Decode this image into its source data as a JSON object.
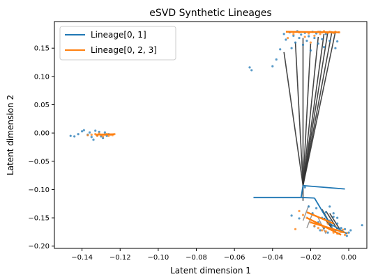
{
  "chart_data": {
    "type": "scatter",
    "title": "eSVD Synthetic Lineages",
    "xlabel": "Latent dimension 1",
    "ylabel": "Latent dimension 2",
    "xlim": [
      -0.1545,
      0.0095
    ],
    "ylim": [
      -0.204,
      0.197
    ],
    "xticks": [
      {
        "value": -0.14,
        "label": "−0.14"
      },
      {
        "value": -0.12,
        "label": "−0.12"
      },
      {
        "value": -0.1,
        "label": "−0.10"
      },
      {
        "value": -0.08,
        "label": "−0.08"
      },
      {
        "value": -0.06,
        "label": "−0.06"
      },
      {
        "value": -0.04,
        "label": "−0.04"
      },
      {
        "value": -0.02,
        "label": "−0.02"
      },
      {
        "value": 0.0,
        "label": "0.00"
      }
    ],
    "yticks": [
      {
        "value": 0.15,
        "label": "0.15"
      },
      {
        "value": 0.1,
        "label": "0.10"
      },
      {
        "value": 0.05,
        "label": "0.05"
      },
      {
        "value": 0.0,
        "label": "0.00"
      },
      {
        "value": -0.05,
        "label": "−0.05"
      },
      {
        "value": -0.1,
        "label": "−0.10"
      },
      {
        "value": -0.15,
        "label": "−0.15"
      },
      {
        "value": -0.2,
        "label": "−0.20"
      }
    ],
    "legend": {
      "position": "top-left",
      "entries": [
        {
          "name": "Lineage[0, 1]",
          "color": "#1f77b4"
        },
        {
          "name": "Lineage[0, 2, 3]",
          "color": "#ff7f0e"
        }
      ]
    },
    "grid": false,
    "colors": {
      "blue": "#1f77b4",
      "orange": "#ff7f0e",
      "line": "#333333",
      "gray": "#7f7f7f"
    },
    "points_blue": [
      [
        -0.146,
        -0.005
      ],
      [
        -0.144,
        -0.006
      ],
      [
        -0.142,
        -0.002
      ],
      [
        -0.14,
        0.003
      ],
      [
        -0.139,
        0.005
      ],
      [
        -0.137,
        -0.003
      ],
      [
        -0.136,
        0.001
      ],
      [
        -0.135,
        -0.007
      ],
      [
        -0.134,
        -0.012
      ],
      [
        -0.133,
        0.004
      ],
      [
        -0.132,
        -0.004
      ],
      [
        -0.131,
        0.002
      ],
      [
        -0.13,
        -0.006
      ],
      [
        -0.129,
        -0.009
      ],
      [
        -0.128,
        0.001
      ],
      [
        -0.127,
        -0.005
      ],
      [
        -0.126,
        -0.002
      ],
      [
        -0.052,
        0.116
      ],
      [
        -0.051,
        0.111
      ],
      [
        -0.04,
        0.118
      ],
      [
        -0.038,
        0.13
      ],
      [
        -0.036,
        0.148
      ],
      [
        -0.034,
        0.175
      ],
      [
        -0.033,
        0.165
      ],
      [
        -0.031,
        0.178
      ],
      [
        -0.03,
        0.15
      ],
      [
        -0.029,
        0.172
      ],
      [
        -0.028,
        0.16
      ],
      [
        -0.027,
        0.18
      ],
      [
        -0.026,
        0.168
      ],
      [
        -0.025,
        0.174
      ],
      [
        -0.024,
        0.156
      ],
      [
        -0.023,
        0.177
      ],
      [
        -0.022,
        0.163
      ],
      [
        -0.021,
        0.171
      ],
      [
        -0.02,
        0.146
      ],
      [
        -0.019,
        0.179
      ],
      [
        -0.018,
        0.168
      ],
      [
        -0.017,
        0.176
      ],
      [
        -0.016,
        0.158
      ],
      [
        -0.015,
        0.179
      ],
      [
        -0.014,
        0.166
      ],
      [
        -0.013,
        0.152
      ],
      [
        -0.012,
        0.175
      ],
      [
        -0.01,
        0.163
      ],
      [
        -0.009,
        0.178
      ],
      [
        -0.007,
        0.15
      ],
      [
        -0.006,
        0.162
      ],
      [
        -0.023,
        -0.096
      ],
      [
        -0.021,
        -0.13
      ],
      [
        -0.019,
        -0.142
      ],
      [
        -0.018,
        -0.165
      ],
      [
        -0.017,
        -0.133
      ],
      [
        -0.016,
        -0.158
      ],
      [
        -0.015,
        -0.172
      ],
      [
        -0.014,
        -0.15
      ],
      [
        -0.013,
        -0.168
      ],
      [
        -0.012,
        -0.14
      ],
      [
        -0.011,
        -0.176
      ],
      [
        -0.01,
        -0.155
      ],
      [
        -0.009,
        -0.166
      ],
      [
        -0.008,
        -0.148
      ],
      [
        -0.007,
        -0.172
      ],
      [
        -0.006,
        -0.16
      ],
      [
        -0.005,
        -0.178
      ],
      [
        -0.004,
        -0.168
      ],
      [
        -0.003,
        -0.175
      ],
      [
        -0.002,
        -0.17
      ],
      [
        -0.001,
        -0.182
      ],
      [
        0.0,
        -0.176
      ],
      [
        0.001,
        -0.172
      ],
      [
        -0.01,
        -0.13
      ],
      [
        -0.008,
        -0.142
      ],
      [
        -0.006,
        -0.15
      ],
      [
        0.007,
        -0.163
      ],
      [
        -0.026,
        -0.151
      ],
      [
        -0.03,
        -0.146
      ]
    ],
    "points_orange": [
      [
        -0.133,
        -0.002
      ],
      [
        -0.132,
        -0.005
      ],
      [
        -0.131,
        -0.001
      ],
      [
        -0.13,
        -0.004
      ],
      [
        -0.129,
        -0.006
      ],
      [
        -0.128,
        -0.003
      ],
      [
        -0.127,
        -0.002
      ],
      [
        -0.126,
        -0.005
      ],
      [
        -0.125,
        -0.003
      ],
      [
        -0.124,
        -0.004
      ],
      [
        -0.123,
        -0.002
      ],
      [
        -0.137,
        -0.004
      ],
      [
        -0.135,
        -0.003
      ],
      [
        -0.032,
        0.168
      ],
      [
        -0.029,
        0.175
      ],
      [
        -0.026,
        0.178
      ],
      [
        -0.023,
        0.17
      ],
      [
        -0.021,
        0.176
      ],
      [
        -0.018,
        0.172
      ],
      [
        -0.016,
        0.179
      ],
      [
        -0.015,
        0.175
      ],
      [
        -0.014,
        0.178
      ],
      [
        -0.013,
        0.18
      ],
      [
        -0.012,
        0.178
      ],
      [
        -0.011,
        0.177
      ],
      [
        -0.01,
        0.179
      ],
      [
        -0.009,
        0.178
      ],
      [
        -0.008,
        0.177
      ],
      [
        -0.007,
        0.179
      ],
      [
        -0.005,
        0.178
      ],
      [
        -0.02,
        0.16
      ],
      [
        -0.026,
        -0.138
      ],
      [
        -0.024,
        -0.145
      ],
      [
        -0.022,
        -0.15
      ],
      [
        -0.02,
        -0.158
      ],
      [
        -0.018,
        -0.164
      ],
      [
        -0.016,
        -0.168
      ],
      [
        -0.014,
        -0.172
      ],
      [
        -0.012,
        -0.174
      ],
      [
        -0.01,
        -0.17
      ],
      [
        -0.008,
        -0.176
      ],
      [
        -0.006,
        -0.178
      ],
      [
        -0.004,
        -0.175
      ],
      [
        -0.002,
        -0.18
      ],
      [
        -0.001,
        -0.177
      ],
      [
        -0.007,
        -0.165
      ],
      [
        -0.011,
        -0.16
      ],
      [
        -0.013,
        -0.167
      ],
      [
        -0.003,
        -0.171
      ],
      [
        -0.028,
        -0.17
      ]
    ],
    "black_lines": [
      [
        [
          -0.024,
          -0.093
        ],
        [
          -0.034,
          0.143
        ]
      ],
      [
        [
          -0.024,
          -0.093
        ],
        [
          -0.028,
          0.16
        ]
      ],
      [
        [
          -0.024,
          -0.093
        ],
        [
          -0.024,
          0.168
        ]
      ],
      [
        [
          -0.024,
          -0.093
        ],
        [
          -0.02,
          0.158
        ]
      ],
      [
        [
          -0.024,
          -0.093
        ],
        [
          -0.016,
          0.17
        ]
      ],
      [
        [
          -0.024,
          -0.093
        ],
        [
          -0.013,
          0.175
        ]
      ],
      [
        [
          -0.024,
          -0.093
        ],
        [
          -0.011,
          0.178
        ]
      ],
      [
        [
          -0.024,
          -0.093
        ],
        [
          -0.009,
          0.176
        ]
      ],
      [
        [
          -0.024,
          -0.093
        ],
        [
          -0.007,
          0.179
        ]
      ],
      [
        [
          -0.024,
          -0.093
        ],
        [
          -0.024,
          -0.12
        ]
      ],
      [
        [
          -0.014,
          -0.135
        ],
        [
          -0.009,
          -0.165
        ]
      ],
      [
        [
          -0.012,
          -0.138
        ],
        [
          -0.006,
          -0.17
        ]
      ],
      [
        [
          -0.01,
          -0.142
        ],
        [
          -0.004,
          -0.174
        ]
      ],
      [
        [
          -0.013,
          -0.15
        ],
        [
          -0.008,
          -0.172
        ]
      ]
    ],
    "gray_lines": [
      [
        [
          -0.019,
          -0.142
        ],
        [
          -0.022,
          -0.168
        ]
      ],
      [
        [
          -0.016,
          -0.15
        ],
        [
          -0.012,
          -0.178
        ]
      ],
      [
        [
          -0.021,
          -0.128
        ],
        [
          -0.024,
          -0.155
        ]
      ]
    ],
    "lineage_blue_lines": [
      [
        [
          -0.024,
          -0.093
        ],
        [
          -0.002,
          -0.099
        ]
      ],
      [
        [
          -0.024,
          -0.093
        ],
        [
          -0.025,
          -0.114
        ]
      ],
      [
        [
          -0.05,
          -0.114
        ],
        [
          -0.025,
          -0.114
        ]
      ],
      [
        [
          -0.025,
          -0.114
        ],
        [
          -0.018,
          -0.115
        ]
      ],
      [
        [
          -0.018,
          -0.115
        ],
        [
          -0.01,
          -0.16
        ]
      ],
      [
        [
          -0.01,
          -0.16
        ],
        [
          -0.001,
          -0.178
        ]
      ]
    ],
    "lineage_orange_lines": [
      [
        [
          -0.133,
          -0.003
        ],
        [
          -0.123,
          -0.002
        ]
      ],
      [
        [
          -0.033,
          0.179
        ],
        [
          -0.005,
          0.178
        ]
      ],
      [
        [
          -0.022,
          -0.14
        ],
        [
          -0.008,
          -0.16
        ]
      ],
      [
        [
          -0.022,
          -0.15
        ],
        [
          -0.004,
          -0.18
        ]
      ],
      [
        [
          -0.02,
          -0.158
        ],
        [
          -0.002,
          -0.176
        ]
      ]
    ]
  }
}
